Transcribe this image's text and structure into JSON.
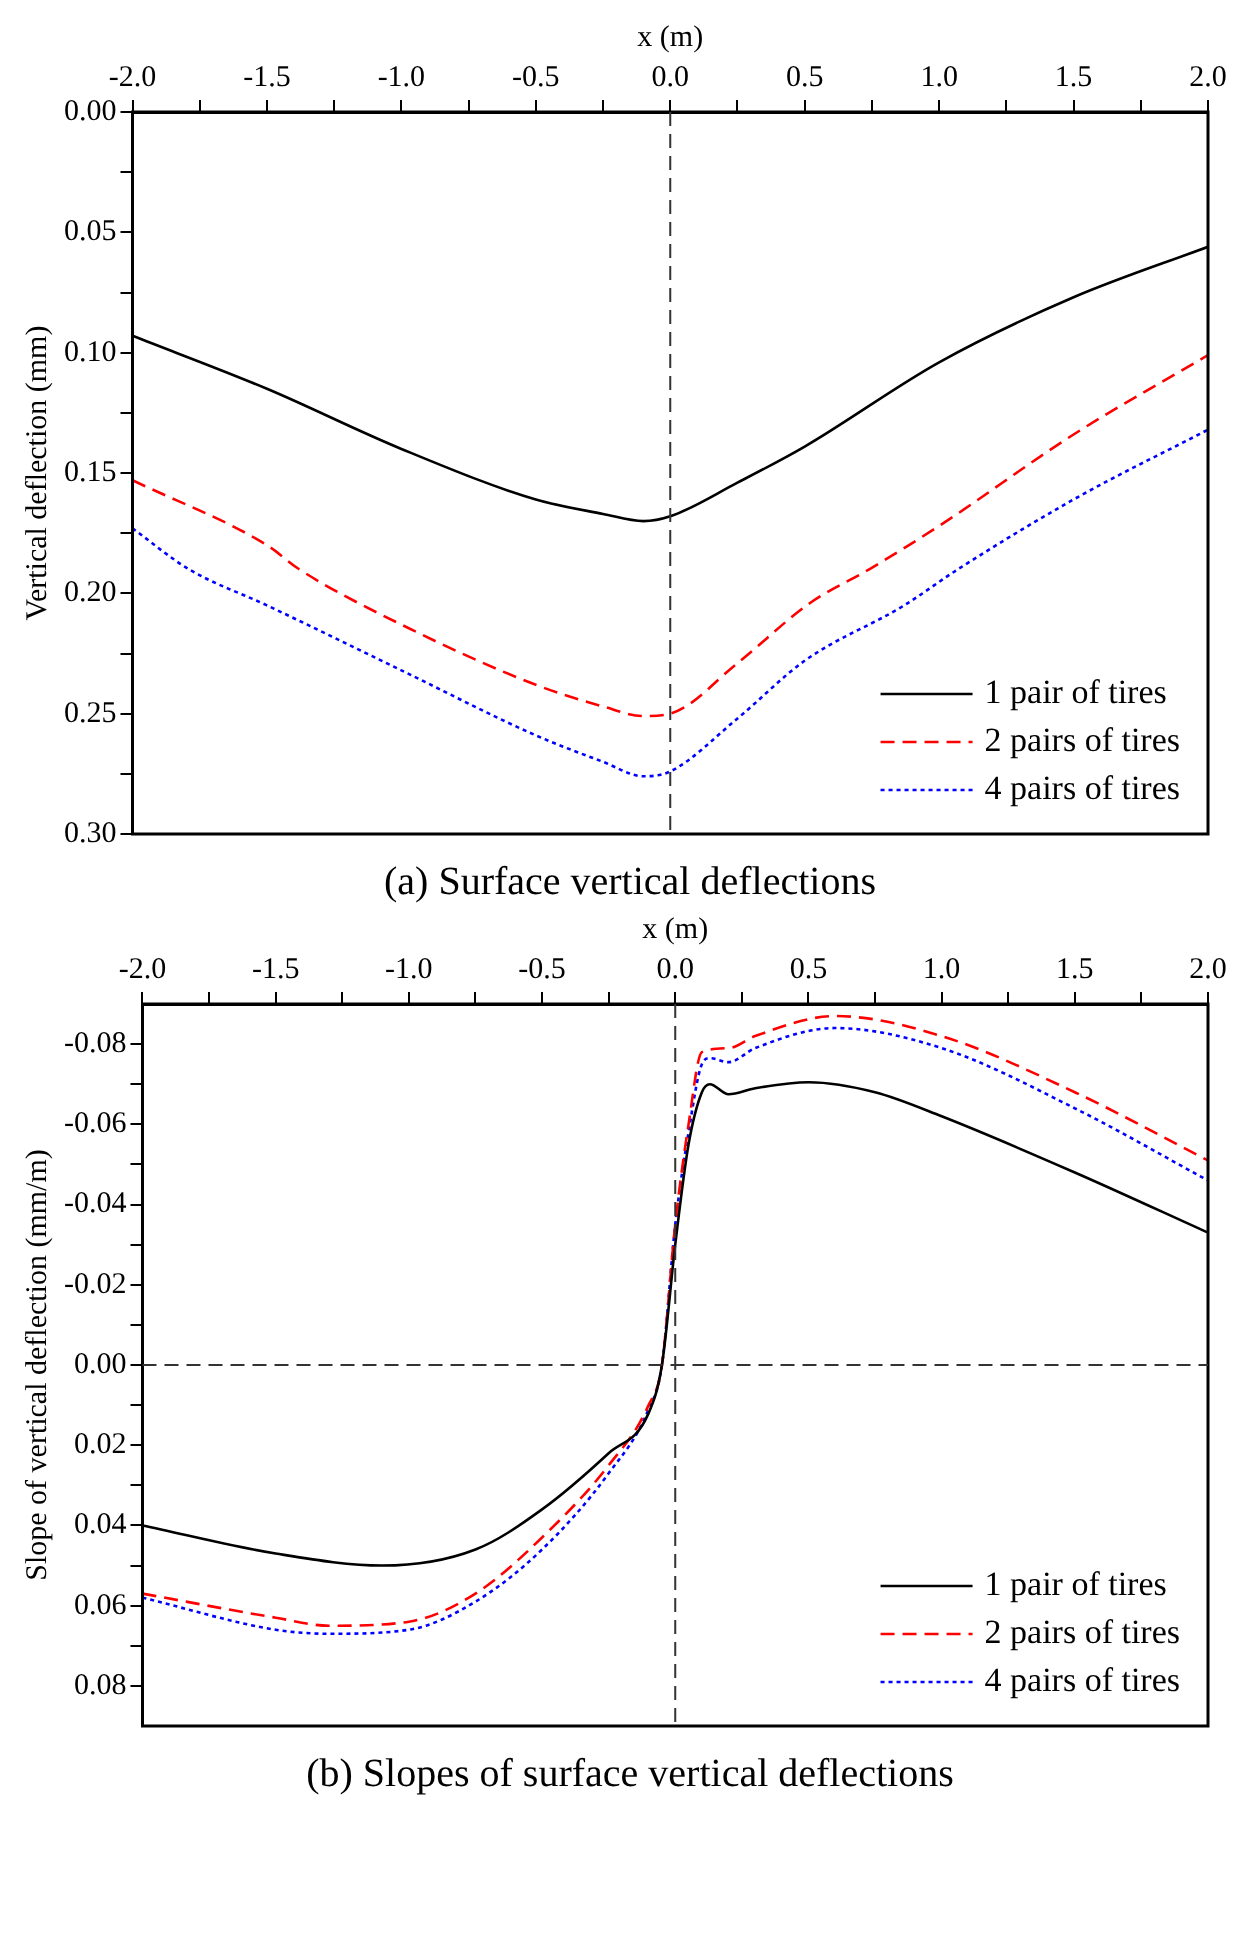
{
  "chart_data": [
    {
      "type": "line",
      "title": "(a) Surface vertical deflections",
      "xlabel": "x (m)",
      "ylabel": "Vertical deflection (mm)",
      "xlim": [
        -2.0,
        2.0
      ],
      "xticks": [
        {
          "value": -2,
          "label": "-2.0"
        },
        {
          "value": -1.75,
          "label": null
        },
        -1.5,
        {
          "value": -1.25,
          "label": null
        },
        {
          "value": -1,
          "label": "-1.0"
        },
        {
          "value": -0.75,
          "label": null
        },
        -0.5,
        {
          "value": -0.25,
          "label": null
        },
        {
          "value": 0,
          "label": "0.0"
        },
        {
          "value": 0.25,
          "label": null
        },
        0.5,
        {
          "value": 0.75,
          "label": null
        },
        {
          "value": 1,
          "label": "1.0"
        },
        {
          "value": 1.25,
          "label": null
        },
        1.5,
        {
          "value": 1.75,
          "label": null
        },
        {
          "value": 2,
          "label": "2.0"
        }
      ],
      "ylim": [
        0.3,
        0.0
      ],
      "yticks": [
        {
          "value": 0,
          "label": "0.00"
        },
        {
          "value": 0.025,
          "label": null
        },
        0.05,
        {
          "value": 0.075,
          "label": null
        },
        {
          "value": 0.1,
          "label": "0.10"
        },
        {
          "value": 0.125,
          "label": null
        },
        0.15,
        {
          "value": 0.175,
          "label": null
        },
        {
          "value": 0.2,
          "label": "0.20"
        },
        {
          "value": 0.225,
          "label": null
        },
        0.25,
        {
          "value": 0.275,
          "label": null
        },
        {
          "value": 0.3,
          "label": "0.30"
        }
      ],
      "grid": false,
      "legend": "bottom right",
      "ref_lines": [
        {
          "axis": "x",
          "value": 0,
          "color": "#333333",
          "line_style": "dashed"
        }
      ],
      "series": [
        {
          "name": "1 pair of tires",
          "color": "#000000",
          "line_style": "solid",
          "x": [
            -2,
            -1.5,
            -1,
            -0.5,
            -0.25,
            -0.1,
            0,
            0.25,
            0.5,
            1,
            1.5,
            2
          ],
          "values": [
            0.093,
            0.115,
            0.14,
            0.161,
            0.167,
            0.17,
            0.168,
            0.154,
            0.139,
            0.104,
            0.077,
            0.056
          ]
        },
        {
          "name": "2 pairs of tires",
          "color": "#ff0000",
          "line_style": "dashed",
          "x": [
            -2,
            -1.5,
            -1.38,
            -1,
            -0.5,
            -0.25,
            -0.1,
            0,
            0.25,
            0.52,
            0.74,
            1,
            1.5,
            2
          ],
          "values": [
            0.153,
            0.18,
            0.19,
            0.213,
            0.238,
            0.247,
            0.251,
            0.25,
            0.229,
            0.204,
            0.19,
            0.172,
            0.134,
            0.101
          ]
        },
        {
          "name": "4 pairs of tires",
          "color": "#0000ff",
          "line_style": "dotted",
          "x": [
            -2,
            -1.79,
            -1.5,
            -1,
            -0.5,
            -0.25,
            -0.1,
            0,
            0.25,
            0.5,
            0.87,
            1.07,
            1.5,
            2
          ],
          "values": [
            0.173,
            0.19,
            0.205,
            0.232,
            0.259,
            0.27,
            0.276,
            0.274,
            0.252,
            0.228,
            0.205,
            0.19,
            0.161,
            0.132
          ]
        }
      ]
    },
    {
      "type": "line",
      "title": "(b) Slopes of surface vertical deflections",
      "xlabel": "x (m)",
      "ylabel": "Slope of vertical deflection (mm/m)",
      "xlim": [
        -2.0,
        2.0
      ],
      "xticks": [
        {
          "value": -2,
          "label": "-2.0"
        },
        {
          "value": -1.75,
          "label": null
        },
        -1.5,
        {
          "value": -1.25,
          "label": null
        },
        {
          "value": -1,
          "label": "-1.0"
        },
        {
          "value": -0.75,
          "label": null
        },
        -0.5,
        {
          "value": -0.25,
          "label": null
        },
        {
          "value": 0,
          "label": "0.0"
        },
        {
          "value": 0.25,
          "label": null
        },
        0.5,
        {
          "value": 0.75,
          "label": null
        },
        {
          "value": 1,
          "label": "1.0"
        },
        {
          "value": 1.25,
          "label": null
        },
        1.5,
        {
          "value": 1.75,
          "label": null
        },
        {
          "value": 2,
          "label": "2.0"
        }
      ],
      "ylim": [
        0.09,
        -0.09
      ],
      "yticks": [
        -0.08,
        {
          "value": -0.07,
          "label": null
        },
        -0.06,
        {
          "value": -0.05,
          "label": null
        },
        -0.04,
        {
          "value": -0.03,
          "label": null
        },
        -0.02,
        {
          "value": -0.01,
          "label": null
        },
        {
          "value": 0,
          "label": "0.00"
        },
        {
          "value": 0.01,
          "label": null
        },
        0.02,
        {
          "value": 0.03,
          "label": null
        },
        0.04,
        {
          "value": 0.05,
          "label": null
        },
        0.06,
        {
          "value": 0.07,
          "label": null
        },
        0.08
      ],
      "grid": false,
      "legend": "bottom right",
      "ref_lines": [
        {
          "axis": "x",
          "value": 0,
          "color": "#333333",
          "line_style": "dashed"
        },
        {
          "axis": "y",
          "value": 0,
          "color": "#333333",
          "line_style": "dashed"
        }
      ],
      "series": [
        {
          "name": "1 pair of tires",
          "color": "#000000",
          "line_style": "solid",
          "x": [
            -2,
            -1.5,
            -1.1,
            -0.75,
            -0.5,
            -0.25,
            -0.1,
            -0.05,
            0,
            0.05,
            0.1,
            0.13,
            0.2,
            0.3,
            0.5,
            0.75,
            1,
            1.5,
            2
          ],
          "values": [
            0.04,
            0.047,
            0.05,
            0.046,
            0.036,
            0.022,
            0.012,
            0.0,
            -0.03,
            -0.055,
            -0.068,
            -0.07,
            -0.0675,
            -0.069,
            -0.0705,
            -0.068,
            -0.062,
            -0.048,
            -0.033
          ]
        },
        {
          "name": "2 pairs of tires",
          "color": "#ff0000",
          "line_style": "dashed",
          "x": [
            -2,
            -1.5,
            -1.3,
            -1,
            -0.75,
            -0.5,
            -0.25,
            -0.1,
            -0.05,
            0,
            0.05,
            0.1,
            0.2,
            0.3,
            0.6,
            1,
            1.5,
            2
          ],
          "values": [
            0.057,
            0.063,
            0.065,
            0.064,
            0.057,
            0.043,
            0.025,
            0.01,
            0.0,
            -0.035,
            -0.06,
            -0.078,
            -0.079,
            -0.082,
            -0.087,
            -0.082,
            -0.068,
            -0.051
          ]
        },
        {
          "name": "4 pairs of tires",
          "color": "#0000ff",
          "line_style": "dotted",
          "x": [
            -2,
            -1.5,
            -1.3,
            -1,
            -0.75,
            -0.5,
            -0.25,
            -0.1,
            -0.05,
            0,
            0.05,
            0.1,
            0.13,
            0.2,
            0.3,
            0.6,
            1,
            1.5,
            2
          ],
          "values": [
            0.058,
            0.066,
            0.067,
            0.066,
            0.059,
            0.046,
            0.027,
            0.011,
            0.0,
            -0.035,
            -0.058,
            -0.075,
            -0.0765,
            -0.0755,
            -0.079,
            -0.084,
            -0.079,
            -0.064,
            -0.046
          ]
        }
      ]
    }
  ]
}
